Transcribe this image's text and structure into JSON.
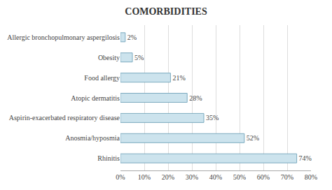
{
  "chart_data": {
    "type": "bar",
    "title": "COMORBIDITIES",
    "orientation": "horizontal",
    "categories": [
      "Rhinitis",
      "Anosmia/hyposmia",
      "Aspirin-exacerbated respiratory disease",
      "Atopic dermatitis",
      "Food allergy",
      "Obesity",
      "Allergic bronchopulmonary aspergilosis"
    ],
    "values": [
      74,
      52,
      35,
      28,
      21,
      5,
      2
    ],
    "value_labels": [
      "74%",
      "52%",
      "35%",
      "28%",
      "21%",
      "5%",
      "2%"
    ],
    "data_labels": true,
    "color": "#cce3ed",
    "xlim": [
      0,
      80
    ],
    "xticks": [
      {
        "value": 0,
        "label": "0%"
      },
      {
        "value": 10,
        "label": "10%"
      },
      {
        "value": 20,
        "label": "20%"
      },
      {
        "value": 30,
        "label": "30%"
      },
      {
        "value": 40,
        "label": "40%"
      },
      {
        "value": 50,
        "label": "50%"
      },
      {
        "value": 60,
        "label": "60%"
      },
      {
        "value": 70,
        "label": "70%"
      },
      {
        "value": 80,
        "label": "80%"
      }
    ],
    "grid": true
  }
}
